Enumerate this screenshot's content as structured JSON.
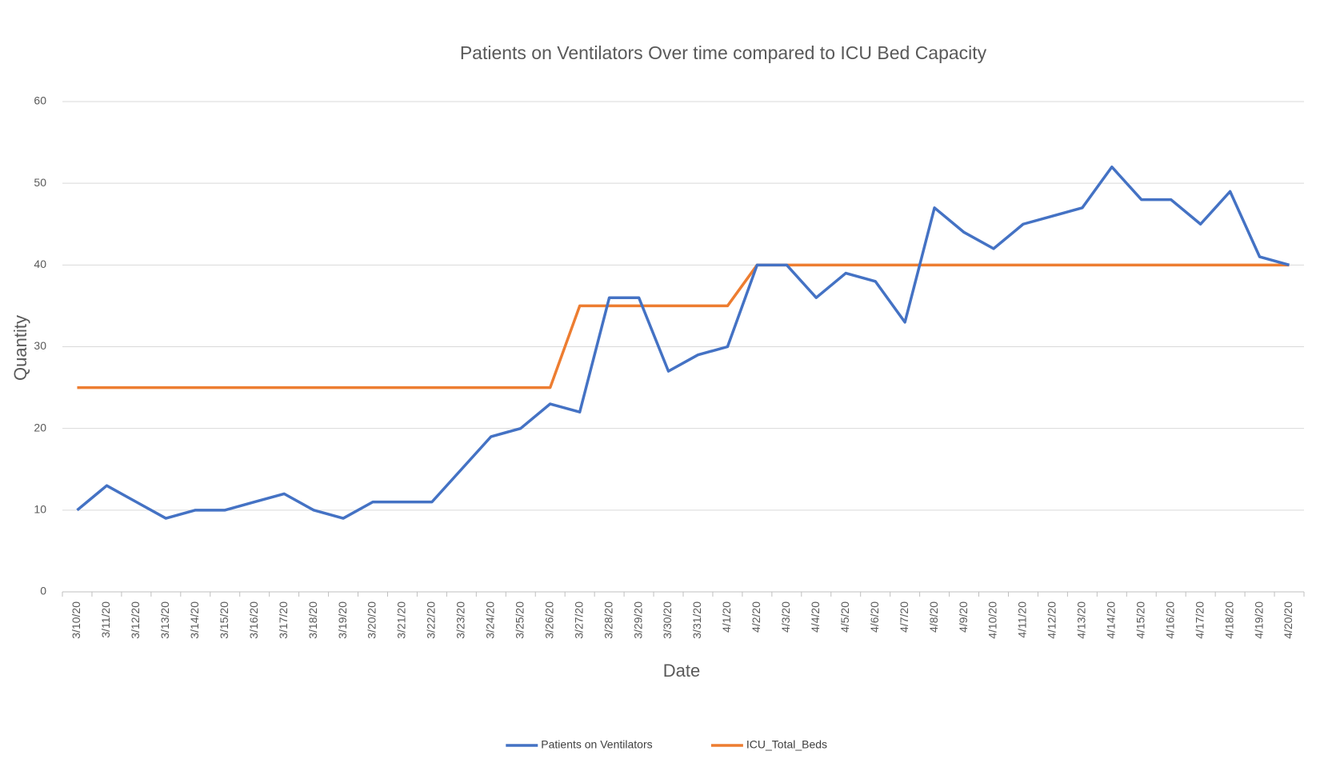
{
  "chart_data": {
    "type": "line",
    "title": "Patients on Ventilators Over time compared to ICU Bed Capacity",
    "x_label": "Date",
    "y_label": "Quantity",
    "categories": [
      "3/10/20",
      "3/11/20",
      "3/12/20",
      "3/13/20",
      "3/14/20",
      "3/15/20",
      "3/16/20",
      "3/17/20",
      "3/18/20",
      "3/19/20",
      "3/20/20",
      "3/21/20",
      "3/22/20",
      "3/23/20",
      "3/24/20",
      "3/25/20",
      "3/26/20",
      "3/27/20",
      "3/28/20",
      "3/29/20",
      "3/30/20",
      "3/31/20",
      "4/1/20",
      "4/2/20",
      "4/3/20",
      "4/4/20",
      "4/5/20",
      "4/6/20",
      "4/7/20",
      "4/8/20",
      "4/9/20",
      "4/10/20",
      "4/11/20",
      "4/12/20",
      "4/13/20",
      "4/14/20",
      "4/15/20",
      "4/16/20",
      "4/17/20",
      "4/18/20",
      "4/19/20",
      "4/20/20"
    ],
    "series": [
      {
        "name": "Patients on Ventilators",
        "color": "#4472c4",
        "values": [
          10,
          13,
          11,
          9,
          10,
          10,
          11,
          12,
          10,
          9,
          11,
          11,
          11,
          15,
          19,
          20,
          23,
          22,
          36,
          36,
          27,
          29,
          30,
          40,
          40,
          36,
          39,
          38,
          33,
          47,
          44,
          42,
          45,
          46,
          47,
          52,
          48,
          48,
          45,
          49,
          41,
          40
        ]
      },
      {
        "name": "ICU_Total_Beds",
        "color": "#ed7d31",
        "values": [
          25,
          25,
          25,
          25,
          25,
          25,
          25,
          25,
          25,
          25,
          25,
          25,
          25,
          25,
          25,
          25,
          25,
          35,
          35,
          35,
          35,
          35,
          35,
          40,
          40,
          40,
          40,
          40,
          40,
          40,
          40,
          40,
          40,
          40,
          40,
          40,
          40,
          40,
          40,
          40,
          40,
          40
        ]
      }
    ],
    "ylim": [
      0,
      60
    ],
    "yticks": [
      0,
      10,
      20,
      30,
      40,
      50,
      60
    ],
    "grid": true,
    "legend": "bottom"
  }
}
